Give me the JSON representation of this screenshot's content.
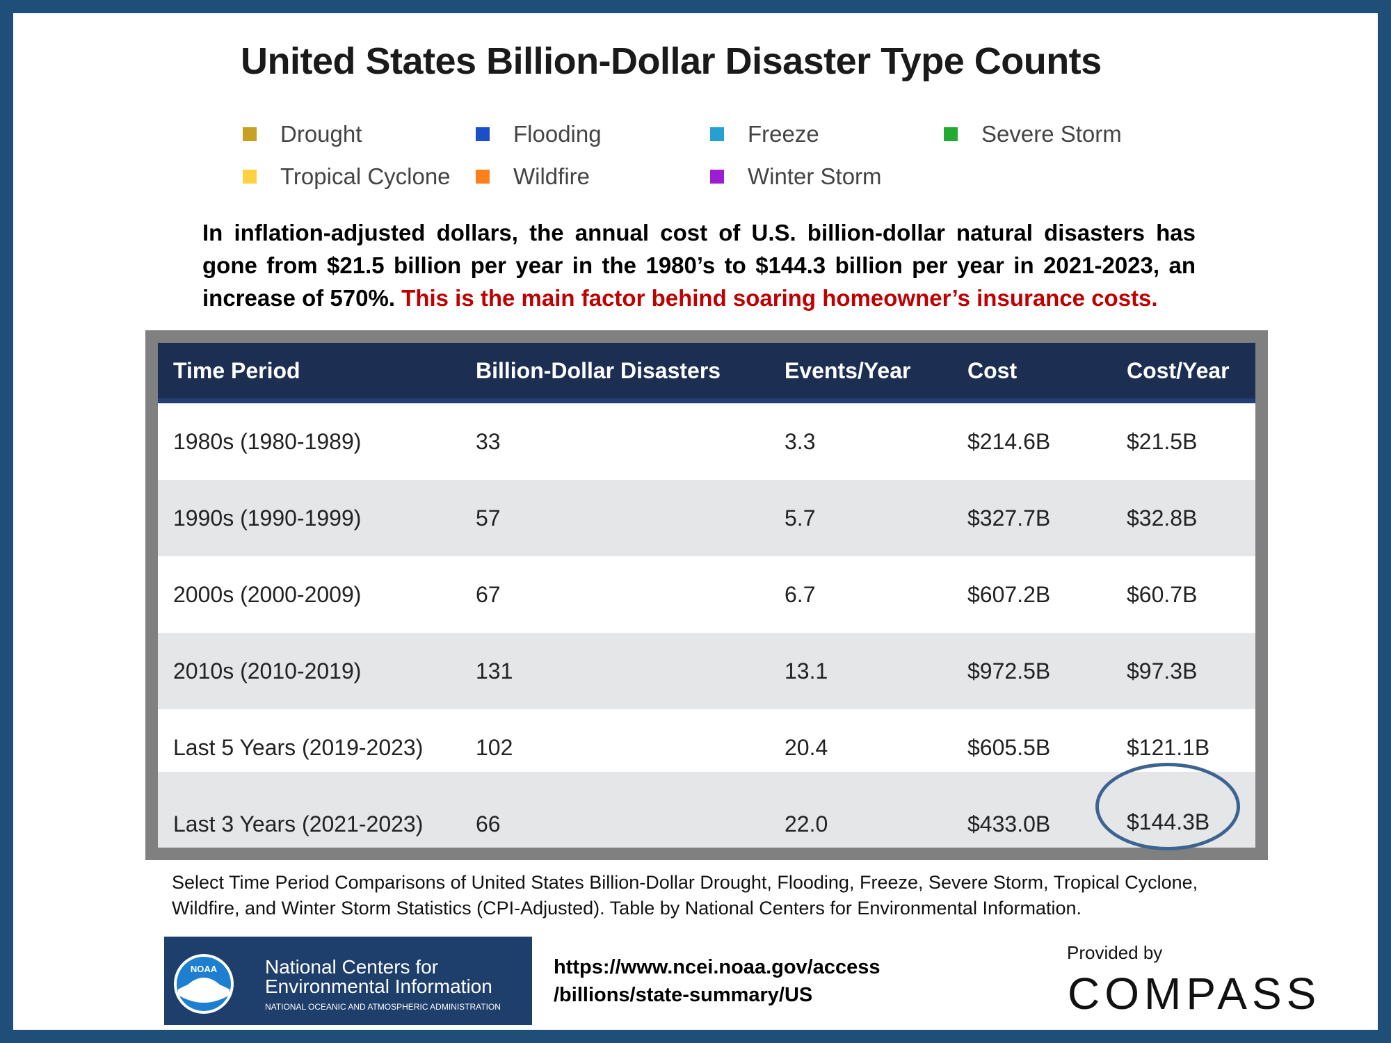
{
  "title": "United States Billion-Dollar Disaster Type Counts",
  "legend": [
    {
      "label": "Drought",
      "color": "#c8a024"
    },
    {
      "label": "Flooding",
      "color": "#1a4fc8"
    },
    {
      "label": "Freeze",
      "color": "#26a0d2"
    },
    {
      "label": "Severe Storm",
      "color": "#22aa33"
    },
    {
      "label": "Tropical Cyclone",
      "color": "#ffd040"
    },
    {
      "label": "Wildfire",
      "color": "#ff7f1a"
    },
    {
      "label": "Winter Storm",
      "color": "#9b1ed2"
    }
  ],
  "summary": {
    "text": "In inflation-adjusted dollars, the annual cost of U.S. billion-dollar natural disasters has gone from $21.5 billion per year in the 1980’s to $144.3 billion per year in 2021-2023, an increase of 570%.",
    "highlight": "This is the main factor behind soaring homeowner’s insurance costs."
  },
  "table": {
    "headers": [
      "Time Period",
      "Billion-Dollar Disasters",
      "Events/Year",
      "Cost",
      "Cost/Year"
    ],
    "rows": [
      [
        "1980s (1980-1989)",
        "33",
        "3.3",
        "$214.6B",
        "$21.5B"
      ],
      [
        "1990s (1990-1999)",
        "57",
        "5.7",
        "$327.7B",
        "$32.8B"
      ],
      [
        "2000s (2000-2009)",
        "67",
        "6.7",
        "$607.2B",
        "$60.7B"
      ],
      [
        "2010s (2010-2019)",
        "131",
        "13.1",
        "$972.5B",
        "$97.3B"
      ],
      [
        "Last 5 Years (2019-2023)",
        "102",
        "20.4",
        "$605.5B",
        "$121.1B"
      ],
      [
        "Last 3 Years (2021-2023)",
        "66",
        "22.0",
        "$433.0B",
        "$144.3B"
      ]
    ]
  },
  "caption": "Select Time Period Comparisons of United States Billion-Dollar Drought, Flooding, Freeze, Severe Storm, Tropical Cyclone, Wildfire, and Winter Storm Statistics (CPI-Adjusted). Table by National Centers for Environmental Information.",
  "noaa": {
    "logo_text": "NOAA",
    "line1": "National Centers for",
    "line2": "Environmental Information",
    "line3": "NATIONAL OCEANIC AND ATMOSPHERIC ADMINISTRATION"
  },
  "url": {
    "line1": "https://www.ncei.noaa.gov/access",
    "line2": "/billions/state-summary/US"
  },
  "provided_by": "Provided by",
  "brand": "COMPASS",
  "colors": {
    "frame": "#1f4e79",
    "header_bg": "#1c2f52",
    "alt_row": "#e5e6e8",
    "accent_red": "#c00000",
    "circle": "#3d6391"
  }
}
